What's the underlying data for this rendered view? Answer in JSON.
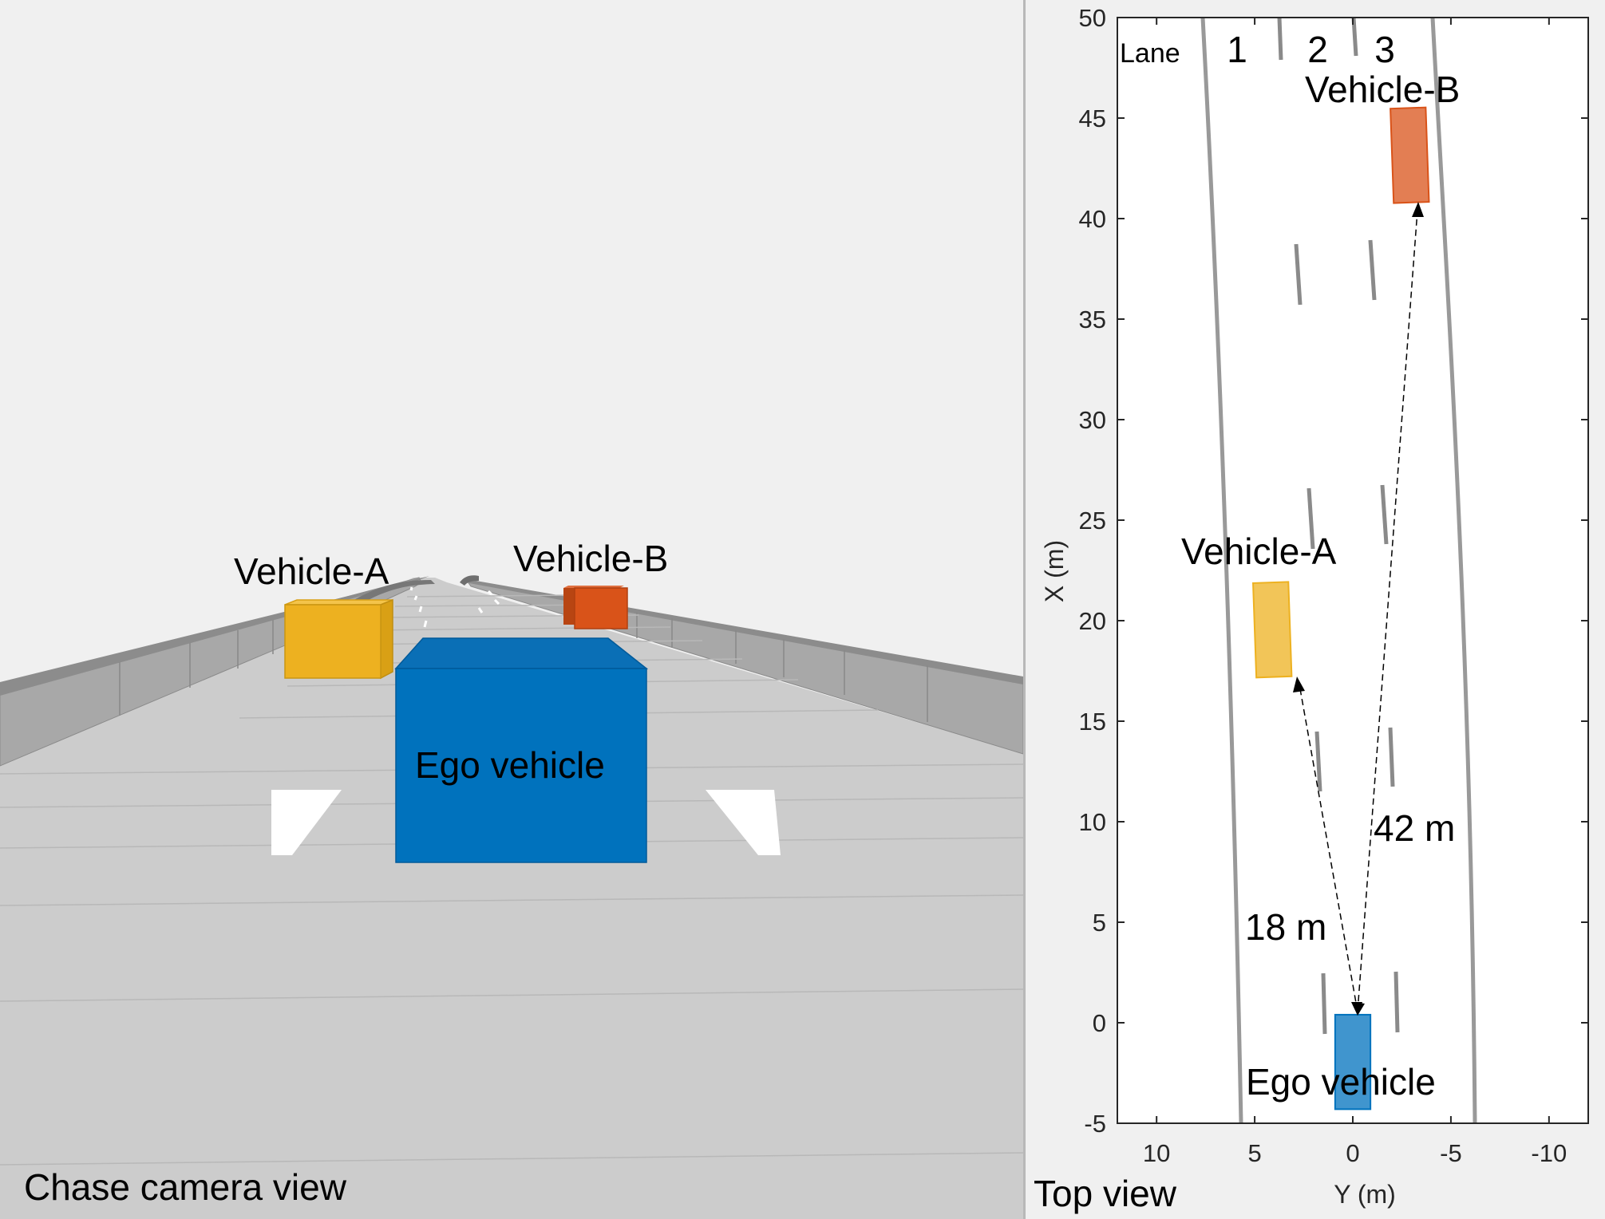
{
  "chase_view": {
    "caption": "Chase camera view",
    "labels": {
      "vehicle_a": "Vehicle-A",
      "vehicle_b": "Vehicle-B",
      "ego": "Ego vehicle"
    },
    "colors": {
      "sky": "#f0f0f0",
      "road": "#cccccc",
      "barrier": "#999999",
      "vehicle_a": "#edb120",
      "vehicle_b": "#d95319",
      "ego": "#0072bd"
    }
  },
  "top_view": {
    "caption": "Top view",
    "lane_label": "Lane",
    "lane_numbers": [
      "1",
      "2",
      "3"
    ],
    "vehicle_labels": {
      "vehicle_a": "Vehicle-A",
      "vehicle_b": "Vehicle-B",
      "ego": "Ego vehicle"
    },
    "distance_labels": {
      "to_a": "18 m",
      "to_b": "42 m"
    }
  },
  "chart_data": {
    "type": "scatter",
    "xlabel": "Y (m)",
    "ylabel": "X (m)",
    "xlim": [
      -12,
      12
    ],
    "ylim": [
      -5,
      50
    ],
    "x_reversed": true,
    "xticks": [
      10,
      5,
      0,
      -5,
      -10
    ],
    "xtick_labels": [
      "10",
      "5",
      "0",
      "-5",
      "-10"
    ],
    "yticks": [
      -5,
      0,
      5,
      10,
      15,
      20,
      25,
      30,
      35,
      40,
      45,
      50
    ],
    "ytick_labels": [
      "-5",
      "0",
      "5",
      "10",
      "15",
      "20",
      "25",
      "30",
      "35",
      "40",
      "45",
      "50"
    ],
    "vehicles": [
      {
        "id": "ego",
        "y": 0,
        "x_rear": -4.3,
        "x_front": 0.4,
        "width": 1.8,
        "color": "#0072bd"
      },
      {
        "id": "vehicle_a",
        "y": 4.1,
        "x_rear": 17.2,
        "x_front": 21.9,
        "width": 1.8,
        "color": "#edb120"
      },
      {
        "id": "vehicle_b",
        "y": -2.9,
        "x_rear": 40.8,
        "x_front": 45.5,
        "width": 1.8,
        "color": "#d95319"
      }
    ],
    "distances_m": {
      "to_a": 18,
      "to_b": 42
    }
  }
}
